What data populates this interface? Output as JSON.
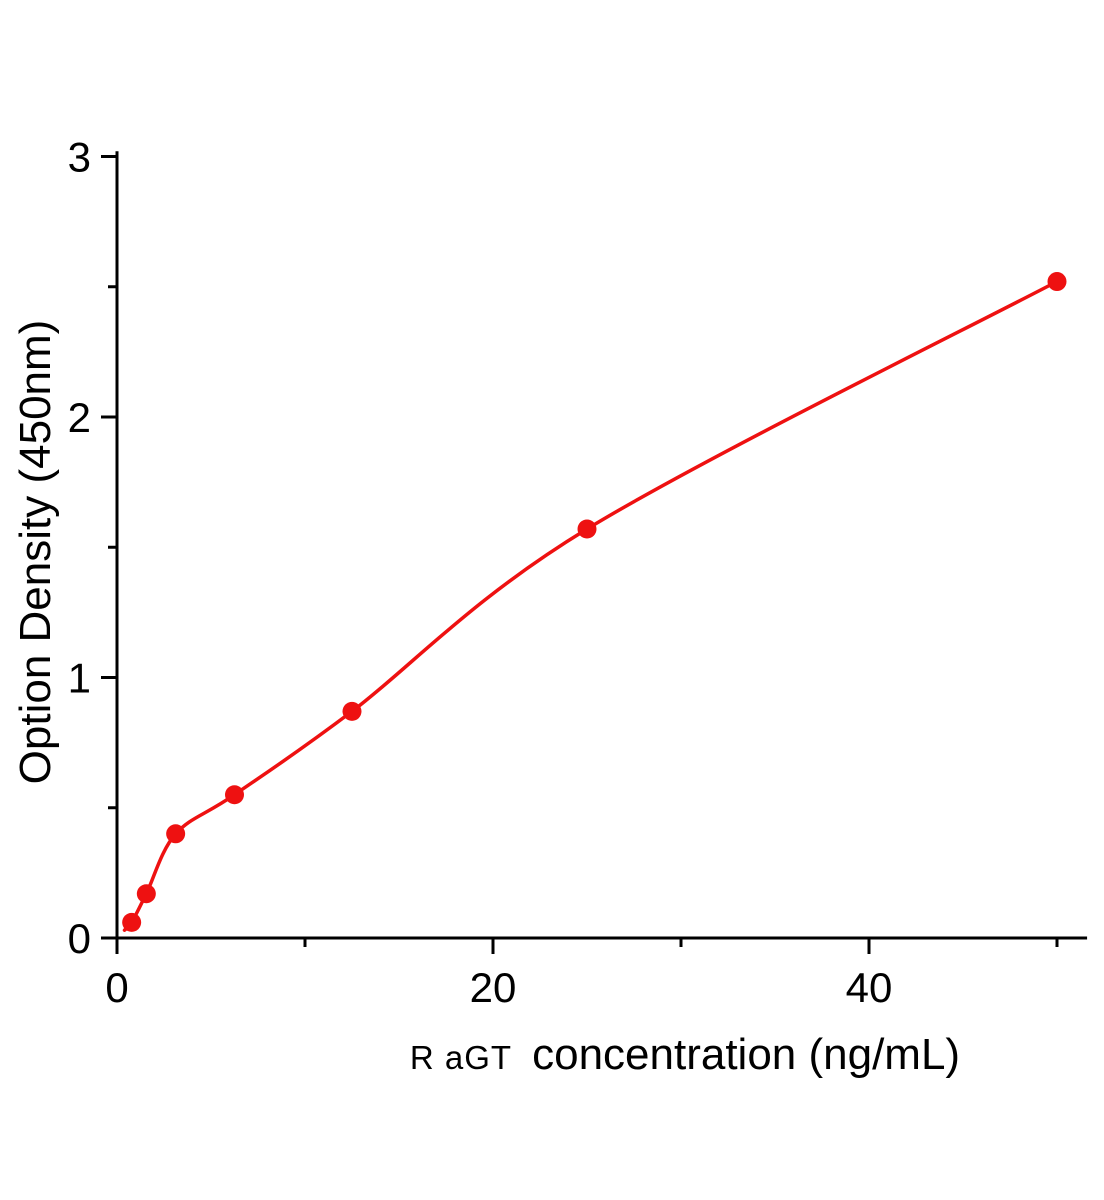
{
  "chart_data": {
    "type": "scatter",
    "title": "",
    "subtitle": "",
    "x": [
      0.78,
      1.56,
      3.12,
      6.25,
      12.5,
      25,
      50
    ],
    "y": [
      0.06,
      0.17,
      0.4,
      0.55,
      0.87,
      1.57,
      2.52
    ],
    "fit": "smooth power-like curve through all points",
    "curve_start_point": {
      "x": 0.4,
      "y": 0.03
    },
    "x_axis": {
      "label_prefix": "R aGT",
      "label": "concentration (ng/mL)",
      "ticks": [
        0,
        20,
        40
      ],
      "minor_ticks": [
        10,
        30,
        50
      ],
      "range": [
        0,
        51.6
      ]
    },
    "y_axis": {
      "label": "Option Density  (450nm)",
      "ticks": [
        0,
        1,
        2,
        3
      ],
      "minor_ticks": [
        0.5,
        1.5,
        2.5
      ],
      "range": [
        0,
        3.02
      ]
    },
    "grid": false,
    "legend": "none",
    "colors": {
      "points": "#ee1111",
      "line": "#ee1111",
      "axis": "#000000",
      "text": "#000000"
    }
  }
}
